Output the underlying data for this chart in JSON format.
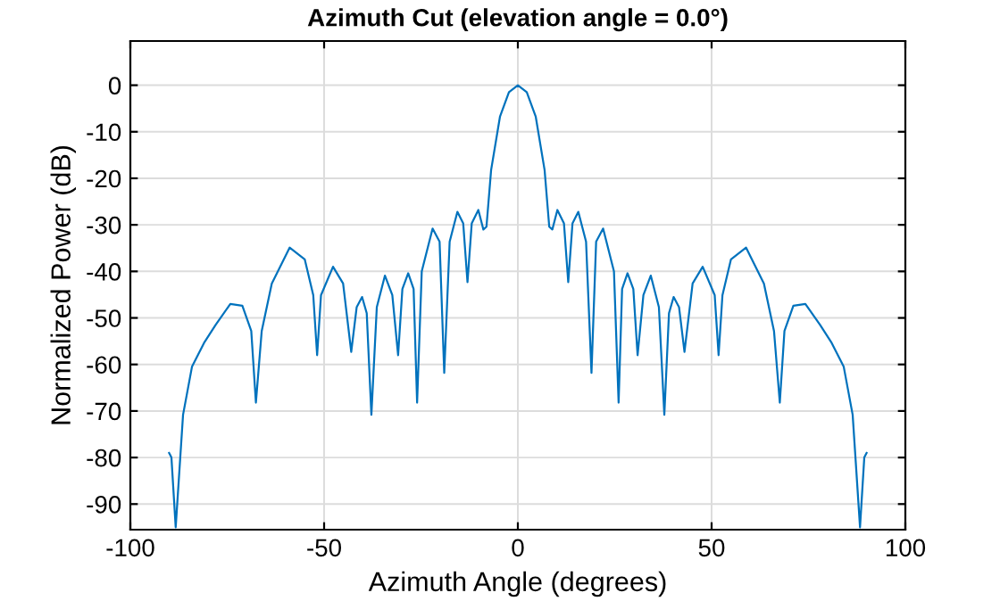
{
  "chart_data": {
    "type": "line",
    "title": "Azimuth Cut (elevation angle = 0.0°)",
    "xlabel": "Azimuth Angle (degrees)",
    "ylabel": "Normalized Power (dB)",
    "series": [
      {
        "color": "#0072bd",
        "x": [
          -90,
          -89.4,
          -88.3,
          -86.4,
          -84.1,
          -81,
          -78,
          -74.2,
          -71.1,
          -68.8,
          -67.6,
          -66.1,
          -63.5,
          -58.9,
          -55,
          -52.8,
          -51.8,
          -50.8,
          -47.7,
          -45.1,
          -43,
          -41.6,
          -40.2,
          -39,
          -37.8,
          -36.4,
          -34.3,
          -32.4,
          -30.9,
          -29.8,
          -28.3,
          -26.9,
          -26,
          -24.8,
          -22,
          -20.2,
          -19,
          -17.6,
          -15.6,
          -14.1,
          -13,
          -11.9,
          -10.2,
          -8.9,
          -8.1,
          -6.9,
          -4.6,
          -2.3,
          0,
          2.3,
          4.6,
          6.9,
          8.1,
          8.9,
          10.2,
          11.9,
          13,
          14.1,
          15.6,
          17.6,
          19,
          20.2,
          22,
          24.8,
          26,
          26.9,
          28.3,
          29.8,
          30.9,
          32.4,
          34.3,
          36.4,
          37.8,
          39,
          40.2,
          41.6,
          43,
          45.1,
          47.7,
          50.8,
          51.8,
          52.8,
          55,
          58.9,
          63.5,
          66.1,
          67.6,
          68.8,
          71.1,
          74.2,
          78,
          81,
          84.1,
          86.4,
          88.3,
          89.4,
          90
        ],
        "values": [
          -79,
          -80,
          -95,
          -70.8,
          -60.5,
          -55.4,
          -51.5,
          -47,
          -47.4,
          -52.8,
          -68.2,
          -52.8,
          -42.6,
          -34.9,
          -37.4,
          -45.1,
          -58,
          -45.1,
          -39,
          -42.6,
          -57.3,
          -47.7,
          -45.5,
          -49,
          -70.8,
          -47.7,
          -40.9,
          -45.1,
          -58,
          -43.8,
          -40.4,
          -43.8,
          -68.2,
          -40,
          -30.8,
          -33.6,
          -61.8,
          -33.6,
          -27.2,
          -29.7,
          -42.3,
          -29.7,
          -26.8,
          -31,
          -30.4,
          -18.2,
          -6.7,
          -1.5,
          0,
          -1.5,
          -6.7,
          -18.2,
          -30.4,
          -31,
          -26.8,
          -29.7,
          -42.3,
          -29.7,
          -27.2,
          -33.6,
          -61.8,
          -33.6,
          -30.8,
          -40,
          -68.2,
          -43.8,
          -40.4,
          -43.8,
          -58,
          -45.1,
          -40.9,
          -47.7,
          -70.8,
          -49,
          -45.5,
          -47.7,
          -57.3,
          -42.6,
          -39,
          -45.1,
          -58,
          -45.1,
          -37.4,
          -34.9,
          -42.6,
          -52.8,
          -68.2,
          -52.8,
          -47.4,
          -47,
          -51.5,
          -55.4,
          -60.5,
          -70.8,
          -95,
          -80,
          -79
        ]
      }
    ],
    "xlim": [
      -100,
      100
    ],
    "xticks": [
      -100,
      -50,
      0,
      50,
      100
    ],
    "ylim": [
      -95.5,
      9.5
    ],
    "yticks": [
      -90,
      -80,
      -70,
      -60,
      -50,
      -40,
      -30,
      -20,
      -10,
      0
    ],
    "grid": true,
    "marker": "none",
    "line_style": "solid"
  }
}
